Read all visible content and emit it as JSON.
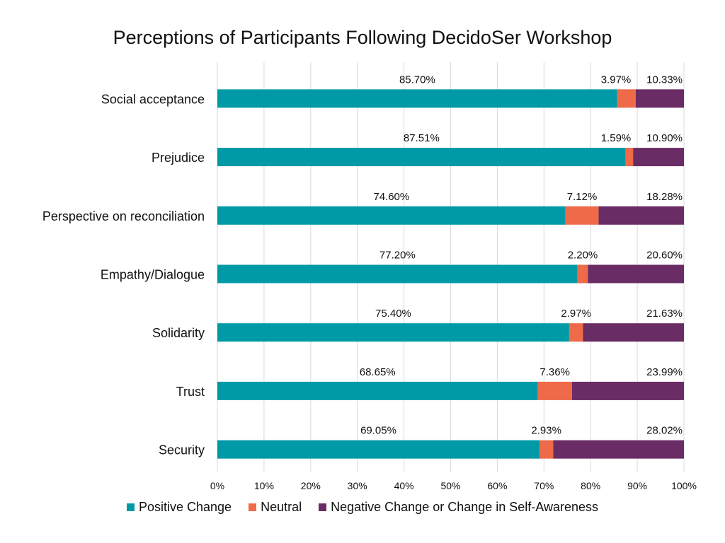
{
  "chart_data": {
    "type": "bar",
    "orientation": "horizontal",
    "stacked": true,
    "title": "Perceptions of Participants Following DecidoSer Workshop",
    "categories": [
      "Social acceptance",
      "Prejudice",
      "Perspective on reconciliation",
      "Empathy/Dialogue",
      "Solidarity",
      "Trust",
      "Security"
    ],
    "series": [
      {
        "name": "Positive Change",
        "color": "#009AA6",
        "values": [
          85.7,
          87.51,
          74.6,
          77.2,
          75.4,
          68.65,
          69.05
        ],
        "labels": [
          "85.70%",
          "87.51%",
          "74.60%",
          "77.20%",
          "75.40%",
          "68.65%",
          "69.05%"
        ]
      },
      {
        "name": "Neutral",
        "color": "#EE6A49",
        "values": [
          3.97,
          1.59,
          7.12,
          2.2,
          2.97,
          7.36,
          2.93
        ],
        "labels": [
          "3.97%",
          "1.59%",
          "7.12%",
          "2.20%",
          "2.97%",
          "7.36%",
          "2.93%"
        ]
      },
      {
        "name": "Negative Change or Change in Self-Awareness",
        "color": "#6A2C65",
        "values": [
          10.33,
          10.9,
          18.28,
          20.6,
          21.63,
          23.99,
          28.02
        ],
        "labels": [
          "10.33%",
          "10.90%",
          "18.28%",
          "20.60%",
          "21.63%",
          "23.99%",
          "28.02%"
        ]
      }
    ],
    "xlim": [
      0,
      100
    ],
    "xticks": [
      "0%",
      "10%",
      "20%",
      "30%",
      "40%",
      "50%",
      "60%",
      "70%",
      "80%",
      "90%",
      "100%"
    ],
    "grid": true,
    "legend_position": "bottom"
  }
}
